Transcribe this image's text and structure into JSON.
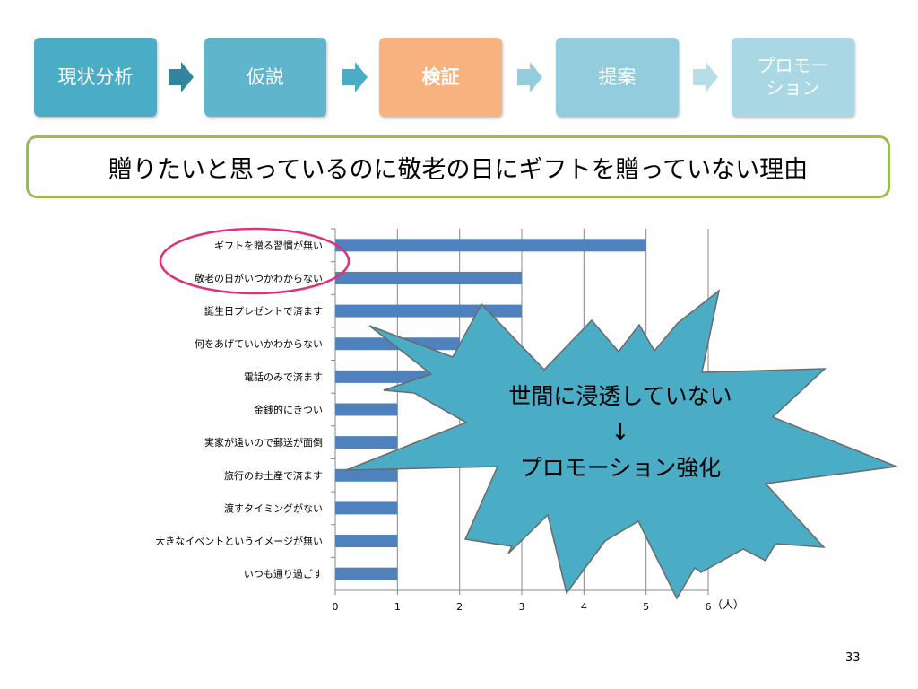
{
  "flow": {
    "steps": [
      {
        "label": "現状分析",
        "color": "#4bacc6"
      },
      {
        "label": "仮説",
        "color": "#5fb6cc"
      },
      {
        "label": "検証",
        "color": "#f7b27f"
      },
      {
        "label": "提案",
        "color": "#93cddd"
      },
      {
        "label": "プロモー\nション",
        "color": "#a9d7e3"
      }
    ],
    "arrow_colors": [
      "#31859c",
      "#4bacc6",
      "#93cddd",
      "#b7dde8"
    ]
  },
  "title": "贈りたいと思っているのに敬老の日にギフトを贈っていない理由",
  "callout": {
    "line1": "世間に浸透していない",
    "arrow": "↓",
    "line2": "プロモーション強化",
    "fill": "#4bacc6"
  },
  "chart_data": {
    "type": "bar",
    "orientation": "horizontal",
    "categories": [
      "ギフトを贈る習慣が無い",
      "敬老の日がいつかわからない",
      "誕生日プレゼントで済ます",
      "何をあげていいかわからない",
      "電話のみで済ます",
      "金銭的にきつい",
      "実家が遠いので郵送が面倒",
      "旅行のお土産で済ます",
      "渡すタイミングがない",
      "大きなイベントというイメージが無い",
      "いつも通り過ごす"
    ],
    "values": [
      5,
      3,
      3,
      2,
      2,
      1,
      1,
      1,
      1,
      1,
      1
    ],
    "xlim": [
      0,
      6
    ],
    "xticks": [
      0,
      1,
      2,
      3,
      4,
      5,
      6
    ],
    "unit_label": "（人）",
    "bar_color": "#4f81bd",
    "grid": true,
    "highlight_color": "#e0307a"
  },
  "page_number": "33"
}
